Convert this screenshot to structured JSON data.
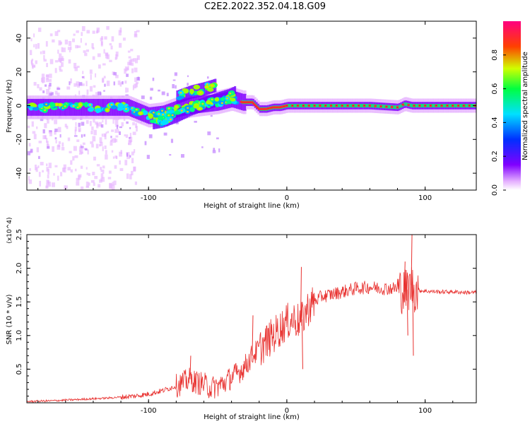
{
  "title": "C2E2.2022.352.04.18.G09",
  "chart_data": [
    {
      "type": "heatmap",
      "xlabel": "Height of straight line (km)",
      "ylabel": "Frequency (Hz)",
      "xlim": [
        -188,
        137
      ],
      "ylim": [
        -50,
        50
      ],
      "xticks": [
        -100,
        0,
        100
      ],
      "yticks": [
        -40,
        -20,
        0,
        20,
        40
      ],
      "colorbar": {
        "label": "Normalized spectral amplitude",
        "range": [
          0,
          1
        ],
        "ticks": [
          "0.0",
          "0.2",
          "0.4",
          "0.6",
          "0.8"
        ]
      },
      "ridge": {
        "x": [
          -185,
          -170,
          -150,
          -130,
          -115,
          -100,
          -90,
          -80,
          -70,
          -60,
          -50,
          -40,
          -32,
          -25,
          -20,
          -15,
          -10,
          -5,
          0,
          10,
          30,
          60,
          80,
          85,
          90,
          110,
          135
        ],
        "freq": [
          -1,
          -1,
          -1,
          -1,
          -1,
          -6,
          -5,
          -2,
          0,
          1,
          2,
          4,
          2,
          2,
          -2,
          -2,
          -1,
          -1,
          0,
          0,
          0,
          0,
          -1,
          1,
          0,
          0,
          0
        ]
      },
      "secondary_ridge": {
        "x": [
          -97,
          -90,
          -80,
          -70,
          -60,
          -50,
          -42,
          -37
        ],
        "freq": [
          -10,
          -9,
          -6,
          -2,
          1,
          4,
          6,
          8
        ]
      },
      "upper_track": {
        "x": [
          -80,
          -70,
          -60,
          -52
        ],
        "freq": [
          5,
          8,
          10,
          12
        ]
      }
    },
    {
      "type": "line",
      "xlabel": "Height of straight line (km)",
      "ylabel": "SNR (10 * v/v)",
      "y_multiplier": "(x10^4)",
      "xlim": [
        -188,
        137
      ],
      "ylim": [
        0,
        2.5
      ],
      "xticks": [
        -100,
        0,
        100
      ],
      "yticks": [
        "0.5",
        "1.0",
        "1.5",
        "2.0",
        "2.5"
      ],
      "color": "#e8312f",
      "series": [
        {
          "x": [
            -188,
            -170,
            -150,
            -130,
            -110,
            -100,
            -90,
            -80,
            -75,
            -70,
            -65,
            -60,
            -55,
            -50,
            -45,
            -40,
            -35,
            -30,
            -25,
            -20,
            -15,
            -10,
            -5,
            0,
            5,
            10,
            15,
            20,
            25,
            30,
            40,
            50,
            60,
            70,
            80,
            85,
            88,
            90,
            92,
            100,
            110,
            120,
            130,
            137
          ],
          "y": [
            0.02,
            0.03,
            0.05,
            0.07,
            0.1,
            0.13,
            0.18,
            0.25,
            0.3,
            0.35,
            0.3,
            0.28,
            0.22,
            0.25,
            0.3,
            0.38,
            0.45,
            0.55,
            0.7,
            0.8,
            0.9,
            1.0,
            1.1,
            1.2,
            1.25,
            1.2,
            1.4,
            1.5,
            1.58,
            1.6,
            1.65,
            1.7,
            1.72,
            1.7,
            1.7,
            1.65,
            1.7,
            1.75,
            1.68,
            1.66,
            1.65,
            1.65,
            1.64,
            1.64
          ]
        }
      ],
      "spikes": [
        {
          "x": 10,
          "y": 2.02
        },
        {
          "x": 11,
          "y": 0.5
        },
        {
          "x": 85,
          "y": 2.1
        },
        {
          "x": 87,
          "y": 1.0
        },
        {
          "x": 90,
          "y": 2.5
        },
        {
          "x": 91,
          "y": 0.7
        },
        {
          "x": -70,
          "y": 0.7
        },
        {
          "x": -25,
          "y": 1.3
        }
      ]
    }
  ]
}
